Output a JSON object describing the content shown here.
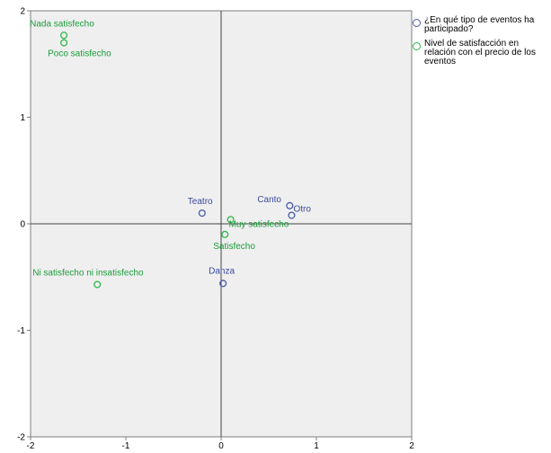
{
  "chart_data": {
    "type": "scatter",
    "title": "",
    "xlabel": "",
    "ylabel": "",
    "xlim": [
      -2,
      2
    ],
    "ylim": [
      -2,
      2
    ],
    "x_ticks": [
      "-2",
      "-1",
      "0",
      "1",
      "2"
    ],
    "y_ticks": [
      "-2",
      "-1",
      "0",
      "1",
      "2"
    ],
    "grid": false,
    "legend_position": "right",
    "background": "#efefef",
    "series": [
      {
        "name": "¿En qué tipo de eventos ha participado?",
        "color": "#4a5aa8",
        "label_color": "#3a4a9c",
        "points": [
          {
            "label": "Teatro",
            "x": -0.2,
            "y": 0.1
          },
          {
            "label": "Canto",
            "x": 0.72,
            "y": 0.17
          },
          {
            "label": "Otro",
            "x": 0.74,
            "y": 0.08
          },
          {
            "label": "Danza",
            "x": 0.02,
            "y": -0.56
          }
        ]
      },
      {
        "name": "Nivel de satisfacción en relación con el precio de los eventos",
        "color": "#2db84a",
        "label_color": "#1a9c3a",
        "points": [
          {
            "label": "Nada satisfecho",
            "x": -1.65,
            "y": 1.77
          },
          {
            "label": "Poco satisfecho",
            "x": -1.65,
            "y": 1.7
          },
          {
            "label": "Muy satisfecho",
            "x": 0.1,
            "y": 0.04
          },
          {
            "label": "Satisfecho",
            "x": 0.04,
            "y": -0.1
          },
          {
            "label": "Ni satisfecho ni insatisfecho",
            "x": -1.3,
            "y": -0.57
          }
        ]
      }
    ]
  }
}
